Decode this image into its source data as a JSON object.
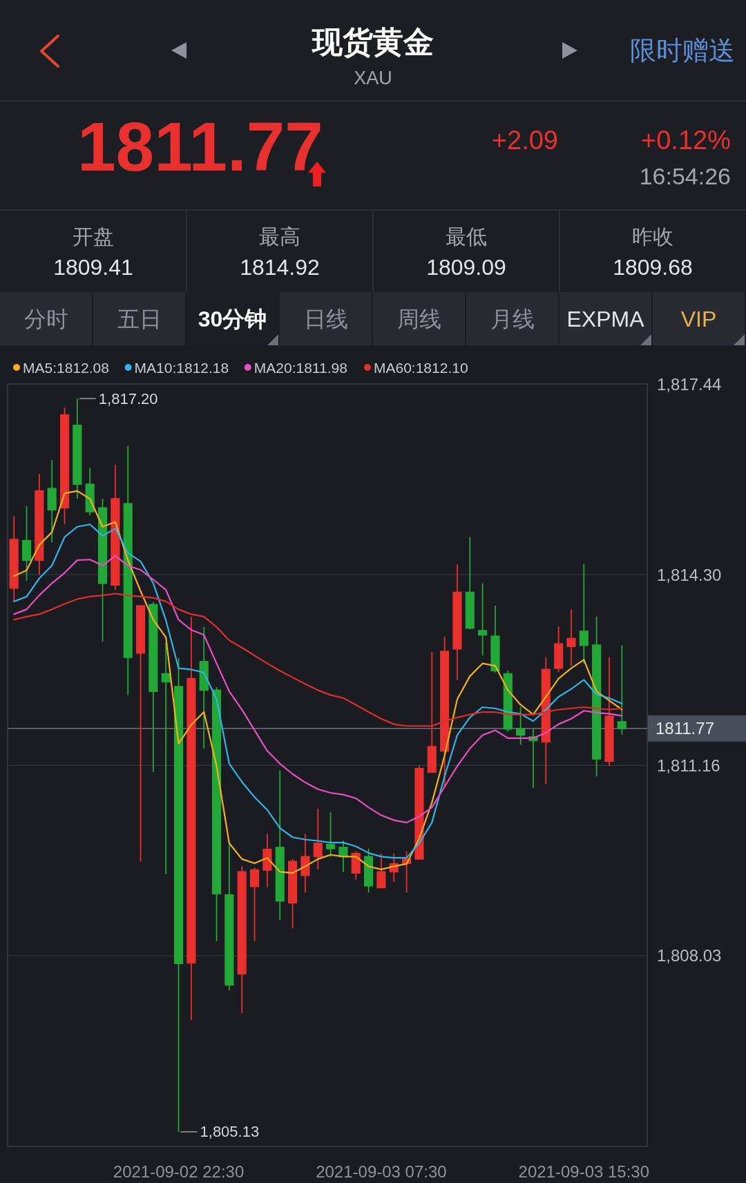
{
  "chart_data": [
    {
      "type": "other",
      "title": "现货黄金",
      "subtitle": "XAU",
      "annotations": [
        "限时赠送",
        "1811.77",
        "+2.09",
        "+0.12%",
        "16:54:26",
        "开盘",
        "1809.41",
        "最高",
        "1814.92",
        "最低",
        "1809.09",
        "昨收",
        "1809.68",
        "分时",
        "五日",
        "30分钟",
        "日线",
        "周线",
        "月线",
        "EXPMA",
        "VIP"
      ]
    },
    {
      "type": "candlestick",
      "categories": [
        null,
        null,
        null,
        null,
        null,
        null,
        null,
        null,
        null,
        null,
        null,
        null,
        null,
        "2021-09-02 22:30",
        null,
        null,
        null,
        null,
        null,
        null,
        null,
        null,
        null,
        null,
        null,
        null,
        null,
        null,
        null,
        "2021-09-03 07:30",
        null,
        null,
        null,
        null,
        null,
        null,
        null,
        null,
        null,
        null,
        null,
        null,
        null,
        null,
        null,
        "2021-09-03 15:30",
        null,
        null,
        null
      ],
      "ohlc": [
        [
          1814.08,
          1815.26,
          1813.86,
          1814.88
        ],
        [
          1814.86,
          1815.43,
          1814.2,
          1814.54
        ],
        [
          1814.54,
          1815.96,
          1814.3,
          1815.68
        ],
        [
          1815.72,
          1816.19,
          1814.83,
          1815.37
        ],
        [
          1815.4,
          1817.05,
          1815.13,
          1816.93
        ],
        [
          1816.76,
          1817.2,
          1815.55,
          1815.79
        ],
        [
          1815.79,
          1816.06,
          1815.28,
          1815.34
        ],
        [
          1815.4,
          1815.55,
          1813.2,
          1814.16
        ],
        [
          1814.13,
          1816.11,
          1814.05,
          1815.55
        ],
        [
          1815.47,
          1816.42,
          1812.32,
          1812.94
        ],
        [
          1813.01,
          1813.79,
          1809.58,
          1813.79
        ],
        [
          1813.81,
          1813.85,
          1811.05,
          1812.38
        ],
        [
          1812.67,
          1813.18,
          1809.37,
          1812.54
        ],
        [
          1812.46,
          1812.93,
          1805.13,
          1807.9
        ],
        [
          1807.91,
          1813.61,
          1806.97,
          1812.59
        ],
        [
          1812.87,
          1813.44,
          1811.44,
          1812.4
        ],
        [
          1812.4,
          1812.45,
          1808.27,
          1809.05
        ],
        [
          1809.03,
          1809.86,
          1807.46,
          1807.55
        ],
        [
          1807.73,
          1809.5,
          1807.08,
          1809.41
        ],
        [
          1809.17,
          1809.48,
          1808.27,
          1809.44
        ],
        [
          1809.44,
          1810.03,
          1809.16,
          1809.78
        ],
        [
          1809.81,
          1811.08,
          1808.62,
          1808.93
        ],
        [
          1808.9,
          1809.62,
          1808.48,
          1809.58
        ],
        [
          1809.35,
          1810.03,
          1809.07,
          1809.66
        ],
        [
          1809.66,
          1810.45,
          1809.45,
          1809.88
        ],
        [
          1809.86,
          1810.39,
          1809.66,
          1809.79
        ],
        [
          1809.81,
          1809.92,
          1809.41,
          1809.66
        ],
        [
          1809.39,
          1809.75,
          1809.28,
          1809.71
        ],
        [
          1809.66,
          1809.79,
          1809.07,
          1809.18
        ],
        [
          1809.15,
          1809.71,
          1809.15,
          1809.41
        ],
        [
          1809.41,
          1809.71,
          1809.24,
          1809.54
        ],
        [
          1809.55,
          1809.75,
          1809.07,
          1809.62
        ],
        [
          1809.62,
          1811.16,
          1809.61,
          1811.11
        ],
        [
          1811.05,
          1813.03,
          1811.05,
          1811.47
        ],
        [
          1811.4,
          1813.28,
          1810.81,
          1813.04
        ],
        [
          1813.08,
          1814.47,
          1812.57,
          1814.01
        ],
        [
          1814.01,
          1814.92,
          1813.4,
          1813.42
        ],
        [
          1813.38,
          1814.16,
          1812.97,
          1813.31
        ],
        [
          1813.29,
          1813.79,
          1812.69,
          1812.72
        ],
        [
          1812.67,
          1812.72,
          1811.72,
          1811.76
        ],
        [
          1811.76,
          1812.12,
          1811.5,
          1811.66
        ],
        [
          1811.63,
          1811.76,
          1810.79,
          1811.57
        ],
        [
          1811.55,
          1812.94,
          1810.85,
          1812.74
        ],
        [
          1812.76,
          1813.45,
          1812.7,
          1813.16
        ],
        [
          1813.12,
          1813.73,
          1812.8,
          1813.25
        ],
        [
          1813.37,
          1814.48,
          1812.84,
          1813.14
        ],
        [
          1813.14,
          1813.61,
          1810.98,
          1811.27
        ],
        [
          1811.23,
          1812.94,
          1811.15,
          1811.97
        ],
        [
          1811.88,
          1813.14,
          1811.67,
          1811.77
        ]
      ],
      "colors": [
        "#e8302e",
        "#22a836",
        "#e8302e",
        "#22a836",
        "#e8302e",
        "#22a836",
        "#22a836",
        "#22a836",
        "#e8302e",
        "#22a836",
        "#e8302e",
        "#22a836",
        "#22a836",
        "#22a836",
        "#e8302e",
        "#22a836",
        "#22a836",
        "#22a836",
        "#e8302e",
        "#e8302e",
        "#e8302e",
        "#22a836",
        "#e8302e",
        "#e8302e",
        "#e8302e",
        "#22a836",
        "#22a836",
        "#e8302e",
        "#22a836",
        "#e8302e",
        "#e8302e",
        "#e8302e",
        "#e8302e",
        "#e8302e",
        "#e8302e",
        "#e8302e",
        "#22a836",
        "#22a836",
        "#22a836",
        "#22a836",
        "#22a836",
        "#22a836",
        "#e8302e",
        "#e8302e",
        "#e8302e",
        "#22a836",
        "#22a836",
        "#e8302e",
        "#22a836"
      ],
      "series": [
        {
          "type": "line",
          "name": "MA5:1812.08",
          "color": "#f2b01e",
          "values": [
            1814.28,
            1814.37,
            1814.79,
            1815.0,
            1815.64,
            1815.68,
            1815.55,
            1815.09,
            1815.17,
            1814.54,
            1814.03,
            1813.56,
            1813.27,
            1811.52,
            1811.83,
            1812.04,
            1811.15,
            1809.88,
            1809.62,
            1809.55,
            1809.64,
            1809.41,
            1809.39,
            1809.5,
            1809.62,
            1809.69,
            1809.66,
            1809.66,
            1809.5,
            1809.45,
            1809.5,
            1809.54,
            1809.96,
            1810.55,
            1811.32,
            1812.25,
            1812.63,
            1812.84,
            1812.8,
            1812.4,
            1812.16,
            1812.0,
            1812.29,
            1812.59,
            1812.76,
            1812.9,
            1812.38,
            1812.23,
            1812.08
          ]
        },
        {
          "type": "line",
          "name": "MA10:1812.18",
          "color": "#2fb4e6",
          "values": [
            1813.86,
            1813.94,
            1814.24,
            1814.45,
            1814.92,
            1815.09,
            1815.13,
            1814.94,
            1815.06,
            1814.66,
            1814.52,
            1814.16,
            1813.55,
            1812.76,
            1812.74,
            1812.69,
            1812.25,
            1811.19,
            1810.89,
            1810.64,
            1810.43,
            1810.13,
            1809.98,
            1809.94,
            1809.92,
            1809.89,
            1809.89,
            1809.83,
            1809.72,
            1809.66,
            1809.64,
            1809.64,
            1809.88,
            1810.22,
            1810.98,
            1811.66,
            1811.95,
            1812.12,
            1812.1,
            1812.04,
            1812.01,
            1811.89,
            1812.08,
            1812.29,
            1812.42,
            1812.57,
            1812.33,
            1812.27,
            1812.18
          ]
        },
        {
          "type": "line",
          "name": "MA20:1811.98",
          "color": "#e84fc6",
          "values": [
            1813.65,
            1813.73,
            1813.96,
            1814.16,
            1814.33,
            1814.54,
            1814.55,
            1814.45,
            1814.61,
            1814.45,
            1814.38,
            1814.22,
            1814.05,
            1813.56,
            1813.39,
            1813.31,
            1812.84,
            1812.38,
            1812.08,
            1811.74,
            1811.4,
            1811.19,
            1811.02,
            1810.88,
            1810.77,
            1810.71,
            1810.68,
            1810.62,
            1810.47,
            1810.34,
            1810.26,
            1810.22,
            1810.32,
            1810.47,
            1810.81,
            1811.15,
            1811.44,
            1811.66,
            1811.74,
            1811.61,
            1811.61,
            1811.61,
            1811.7,
            1811.84,
            1811.93,
            1812.06,
            1812.03,
            1812.01,
            1811.98
          ]
        },
        {
          "type": "line",
          "name": "MA60:1812.10",
          "color": "#de2f2a",
          "values": [
            1813.56,
            1813.61,
            1813.65,
            1813.73,
            1813.82,
            1813.9,
            1813.94,
            1813.96,
            1813.99,
            1813.96,
            1813.94,
            1813.92,
            1813.86,
            1813.73,
            1813.65,
            1813.61,
            1813.44,
            1813.22,
            1813.1,
            1812.97,
            1812.84,
            1812.72,
            1812.61,
            1812.5,
            1812.4,
            1812.32,
            1812.27,
            1812.16,
            1812.04,
            1811.93,
            1811.84,
            1811.81,
            1811.81,
            1811.81,
            1811.89,
            1811.95,
            1812.0,
            1812.04,
            1812.04,
            1812.0,
            1812.0,
            1812.0,
            1812.04,
            1812.08,
            1812.1,
            1812.12,
            1812.1,
            1812.08,
            1812.1
          ]
        }
      ],
      "ylim": [
        1804.89,
        1817.44
      ],
      "yticks": [
        {
          "value": 1817.44,
          "label": "1,817.44"
        },
        {
          "value": 1814.3,
          "label": "1,814.30"
        },
        {
          "value": 1811.16,
          "label": "1,811.16"
        },
        {
          "value": 1808.03,
          "label": "1,808.03"
        }
      ],
      "grid": "y",
      "legend": "top left",
      "ref_lines": [
        {
          "axis": "y",
          "value": 1811.77,
          "label": "1811.77",
          "color": "#6c707c"
        }
      ],
      "annotations": [
        "1,817.20",
        "1,805.13"
      ]
    }
  ]
}
